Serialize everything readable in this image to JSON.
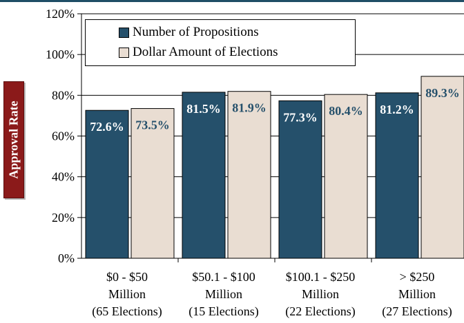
{
  "chart_data": {
    "type": "bar",
    "ylabel": "Approval Rate",
    "ylim": [
      0,
      120
    ],
    "yticks": [
      "0%",
      "20%",
      "40%",
      "60%",
      "80%",
      "100%",
      "120%"
    ],
    "grid": true,
    "legend_position": "top-left",
    "categories": [
      [
        "$0 - $50",
        "Million",
        "(65 Elections)"
      ],
      [
        "$50.1 - $100",
        "Million",
        "(15 Elections)"
      ],
      [
        "$100.1 - $250",
        "Million",
        "(22 Elections)"
      ],
      [
        "> $250",
        "Million",
        "(27 Elections)"
      ]
    ],
    "series": [
      {
        "name": "Number of Propositions",
        "values": [
          72.6,
          81.5,
          77.3,
          81.2
        ],
        "labels": [
          "72.6%",
          "81.5%",
          "77.3%",
          "81.2%"
        ]
      },
      {
        "name": "Dollar Amount of Elections",
        "values": [
          73.5,
          81.9,
          80.4,
          89.3
        ],
        "labels": [
          "73.5%",
          "81.9%",
          "80.4%",
          "89.3%"
        ]
      }
    ]
  },
  "colors": {
    "series_1": "#25506b",
    "series_2": "#e9ddd2",
    "series_1_label": "#ffffff",
    "series_2_label": "#25506b",
    "axis_label_box": "#8b1a1a"
  }
}
